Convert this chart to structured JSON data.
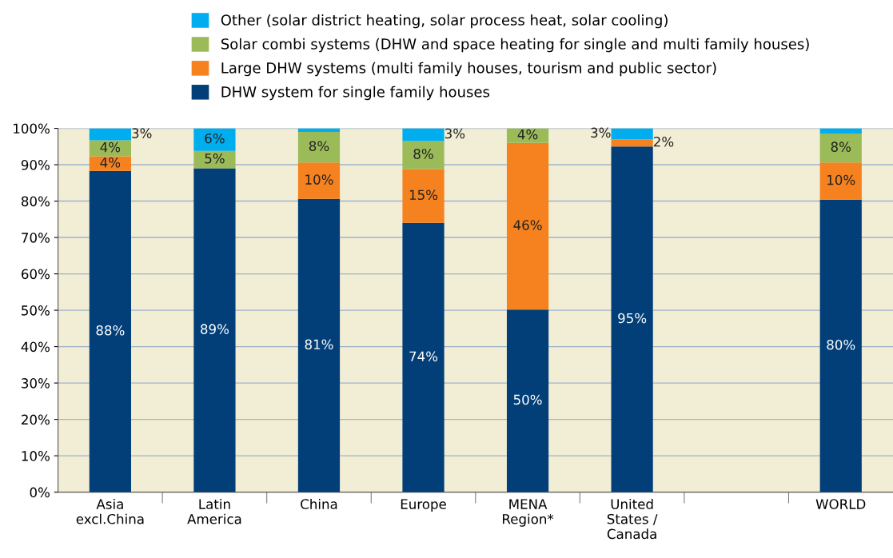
{
  "chart_data": {
    "type": "bar",
    "stacked": true,
    "categories": [
      "Asia\nexcl.China",
      "Latin\nAmerica",
      "China",
      "Europe",
      "MENA\nRegion*",
      "United\nStates /\nCanada",
      null,
      "WORLD"
    ],
    "series": [
      {
        "name": "DHW system for single family houses",
        "color": "#023f78",
        "values": [
          88.3,
          89,
          80.6,
          74,
          50.2,
          95,
          null,
          80.4
        ],
        "value_labels": [
          "88%",
          "89%",
          "81%",
          "74%",
          "50%",
          "95%",
          null,
          "80%"
        ]
      },
      {
        "name": "Large DHW systems (multi family houses, tourism and public sector)",
        "color": "#f5821f",
        "values": [
          4,
          0,
          10,
          14.8,
          45.8,
          2,
          null,
          10.2
        ],
        "value_labels": [
          "4%",
          null,
          "10%",
          "15%",
          "46%",
          "2%",
          null,
          "10%"
        ]
      },
      {
        "name": "Solar combi systems (DHW and space heating for single and multi family houses)",
        "color": "#9bbb59",
        "values": [
          4.4,
          4.8,
          8.4,
          7.7,
          4,
          0,
          null,
          8
        ],
        "value_labels": [
          "4%",
          "5%",
          "8%",
          "8%",
          "4%",
          null,
          null,
          "8%"
        ]
      },
      {
        "name": "Other (solar district heating, solar process heat, solar cooling)",
        "color": "#00aeef",
        "values": [
          3.3,
          6.2,
          1,
          3.5,
          0,
          3,
          null,
          1.4
        ],
        "value_labels": [
          "3%",
          "6%",
          null,
          "3%",
          null,
          "3%",
          null,
          null
        ]
      }
    ],
    "ylim": [
      0,
      100
    ],
    "yticks": [
      {
        "value": 0,
        "label": "0%"
      },
      {
        "value": 10,
        "label": "10%"
      },
      {
        "value": 20,
        "label": "20%"
      },
      {
        "value": 30,
        "label": "30%"
      },
      {
        "value": 40,
        "label": "40%"
      },
      {
        "value": 50,
        "label": "50%"
      },
      {
        "value": 60,
        "label": "60%"
      },
      {
        "value": 70,
        "label": "70%"
      },
      {
        "value": 80,
        "label": "80%"
      },
      {
        "value": 90,
        "label": "90%"
      },
      {
        "value": 100,
        "label": "100%"
      }
    ],
    "grid": "y",
    "legend": "top"
  }
}
